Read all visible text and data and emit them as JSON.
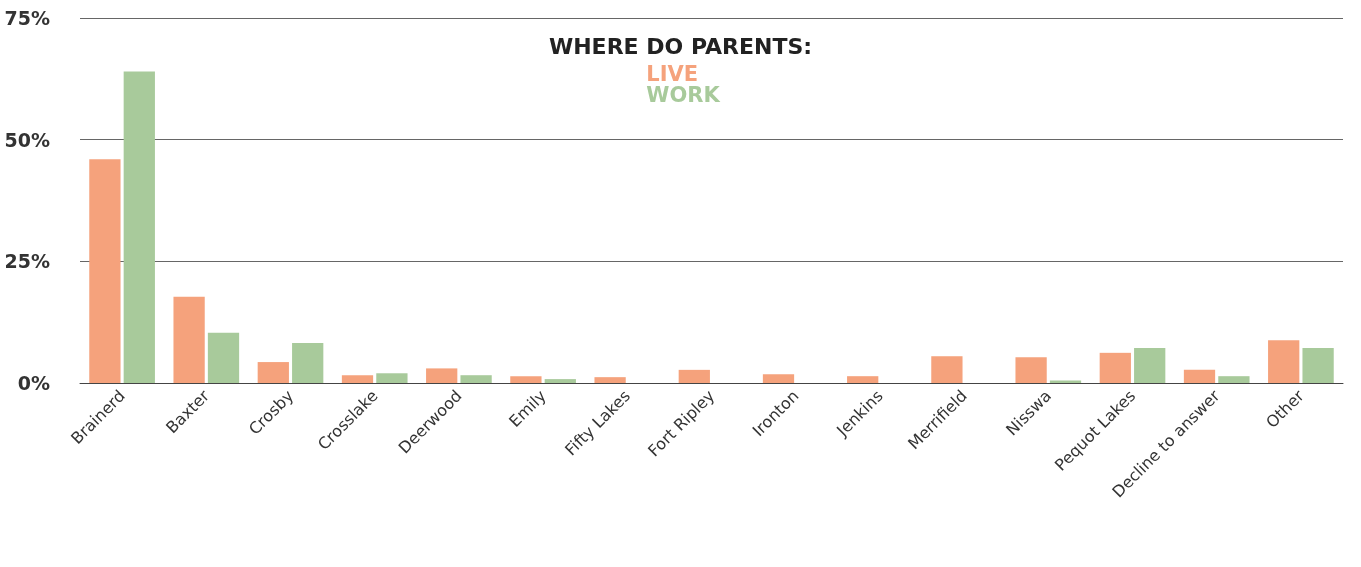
{
  "chart_data": {
    "type": "bar",
    "title": "WHERE DO PARENTS:",
    "categories": [
      "Brainerd",
      "Baxter",
      "Crosby",
      "Crosslake",
      "Deerwood",
      "Emily",
      "Fifty Lakes",
      "Fort Ripley",
      "Ironton",
      "Jenkins",
      "Merrifield",
      "Nisswa",
      "Pequot Lakes",
      "Decline to answer",
      "Other"
    ],
    "series": [
      {
        "name": "LIVE",
        "color": "#f5a27c",
        "values": [
          46,
          17.7,
          4.3,
          1.6,
          3,
          1.4,
          1.2,
          2.7,
          1.8,
          1.4,
          5.5,
          5.3,
          6.2,
          2.7,
          8.8
        ]
      },
      {
        "name": "WORK",
        "color": "#a8ca9b",
        "values": [
          64,
          10.3,
          8.2,
          2,
          1.6,
          0.8,
          0,
          0,
          0,
          0,
          0,
          0.5,
          7.2,
          1.4,
          7.2
        ]
      }
    ],
    "ylim": [
      0,
      75
    ],
    "yticks": [
      {
        "value": 0,
        "label": "0%"
      },
      {
        "value": 25,
        "label": "25%"
      },
      {
        "value": 50,
        "label": "50%"
      },
      {
        "value": 75,
        "label": "75%"
      }
    ],
    "grid": "y",
    "legend": "top"
  }
}
